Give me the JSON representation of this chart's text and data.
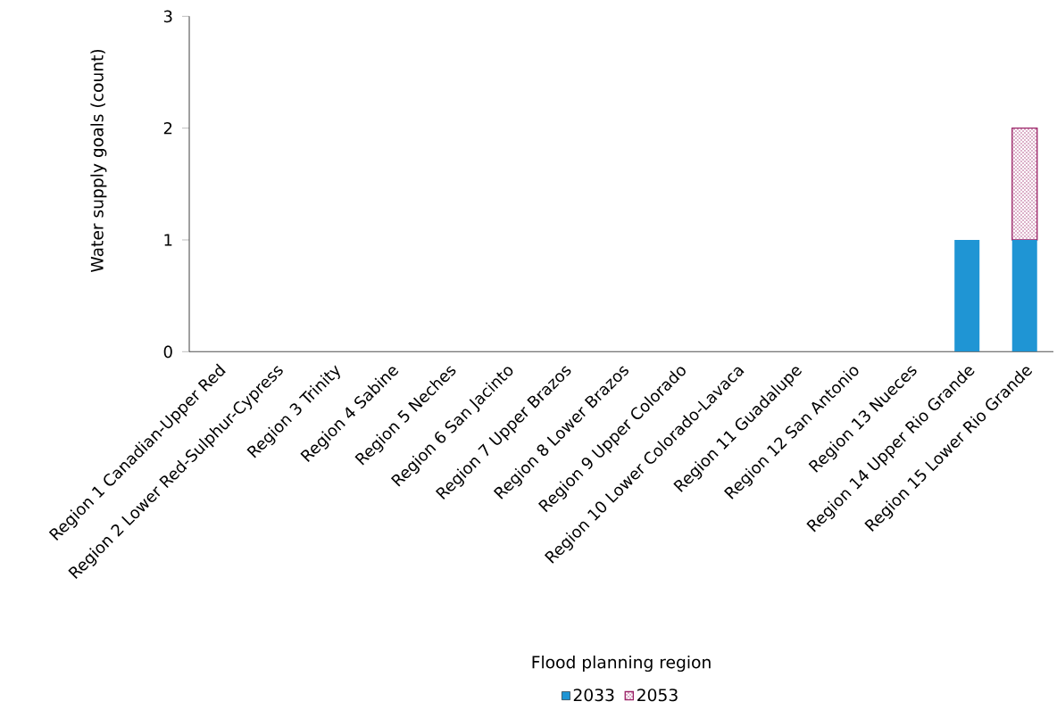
{
  "chart_data": {
    "type": "bar",
    "stacked": true,
    "xlabel": "Flood planning region",
    "ylabel": "Water supply goals (count)",
    "categories": [
      "Region 1 Canadian-Upper Red",
      "Region 2 Lower Red-Sulphur-Cypress",
      "Region 3 Trinity",
      "Region 4 Sabine",
      "Region 5 Neches",
      "Region 6 San Jacinto",
      "Region 7 Upper Brazos",
      "Region 8 Lower Brazos",
      "Region 9 Upper Colorado",
      "Region 10 Lower Colorado-Lavaca",
      "Region 11 Guadalupe",
      "Region 12 San Antonio",
      "Region 13 Nueces",
      "Region 14 Upper Rio Grande",
      "Region 15 Lower Rio Grande"
    ],
    "series": [
      {
        "name": "2033",
        "color": "#1f95d4",
        "values": [
          0,
          0,
          0,
          0,
          0,
          0,
          0,
          0,
          0,
          0,
          0,
          0,
          0,
          1,
          1
        ]
      },
      {
        "name": "2053",
        "color": "#9b2367",
        "values": [
          0,
          0,
          0,
          0,
          0,
          0,
          0,
          0,
          0,
          0,
          0,
          0,
          0,
          0,
          1
        ]
      }
    ],
    "ylim": [
      0,
      3
    ],
    "yticks": [
      0,
      1,
      2,
      3
    ],
    "grid": false,
    "legend": "bottom"
  }
}
